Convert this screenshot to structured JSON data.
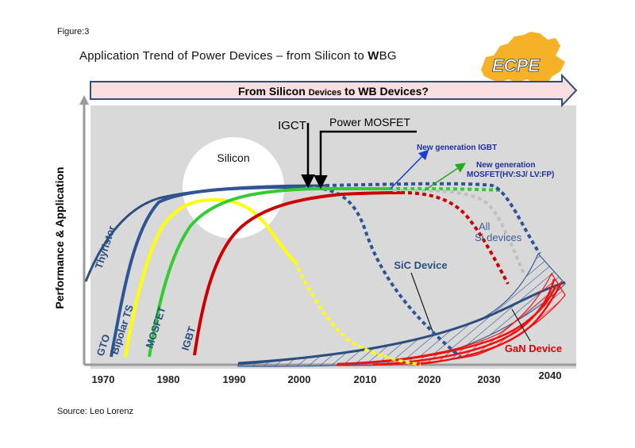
{
  "figure_label": "Figure:3",
  "title": {
    "part1": "Application Trend of Power Devices – from Silicon to ",
    "part2": "W",
    "part3": "BG"
  },
  "logo": {
    "text": "ECPE"
  },
  "banner": {
    "part1": "From Silicon ",
    "part2": "Devices",
    "part3": " to WB Devices?"
  },
  "axes": {
    "y_label": "Performance  & Application",
    "x_ticks": [
      "1970",
      "1980",
      "1990",
      "2000",
      "2010",
      "2020",
      "2030",
      "2040"
    ]
  },
  "labels": {
    "silicon": "Silicon",
    "igct": "IGCT",
    "power_mosfet": "Power MOSFET",
    "new_igbt": "New generation IGBT",
    "new_mosfet_1": "New generation",
    "new_mosfet_2": "MOSFET(HV:SJ/ LV:FP)",
    "all_si_1": "All",
    "all_si_2": "Si devices",
    "sic_device": "SiC Device",
    "gan_device": "GaN Device",
    "thyristor": "Thyristor",
    "gto": "GTO",
    "bipolar_ts": "Bipolar TS",
    "mosfet": "MOSFET",
    "igbt": "IGBT"
  },
  "source": "Source: Leo Lorenz",
  "colors": {
    "plot_bg": "#d9d9d9",
    "banner_fill": "#f8dede",
    "banner_stroke": "#2f4f7f",
    "thyristor": "#2c4f7f",
    "gto": "#2f5597",
    "bipolar_ts": "#ffff00",
    "mosfet": "#33cc33",
    "igbt": "#cc0000",
    "all_si": "#c0c0c0",
    "sic": "#3b5f96",
    "gan": "#ee1111",
    "arrow_blue": "#1f3fd0",
    "arrow_green": "#22aa22"
  }
}
